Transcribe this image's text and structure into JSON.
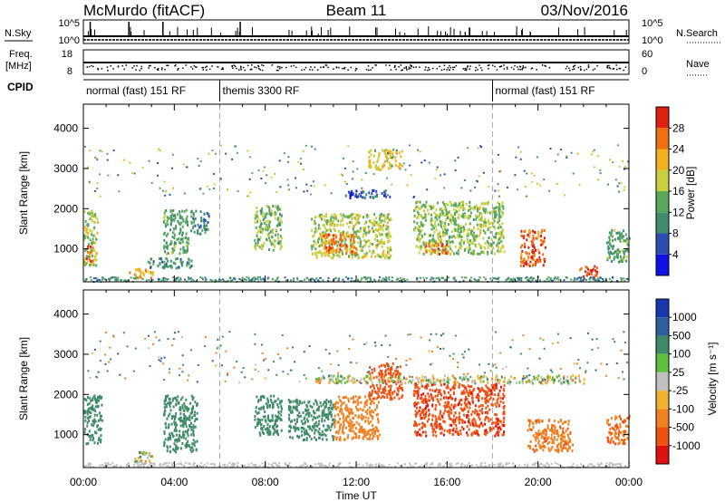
{
  "header": {
    "title_left": "McMurdo (fitACF)",
    "title_center": "Beam 11",
    "title_right": "03/Nov/2016"
  },
  "top_panels": {
    "nsky_label": "N.Sky",
    "nsearch_label": "N.Search",
    "nsky_ticks": [
      "10^5",
      "10^0"
    ],
    "nsearch_ticks": [
      "10^5",
      "10^0"
    ],
    "freq_label_1": "Freq.",
    "freq_label_2": "[MHz]",
    "freq_ticks": [
      "18",
      "8"
    ],
    "nave_label": "Nave",
    "nave_ticks": [
      "60",
      "0"
    ],
    "cpid_label": "CPID",
    "cpid_segments": [
      {
        "label": "normal (fast) 151 RF",
        "start_hour": 0,
        "end_hour": 6
      },
      {
        "label": "themis 3300 RF",
        "start_hour": 6,
        "end_hour": 18
      },
      {
        "label": "normal (fast) 151 RF",
        "start_hour": 18,
        "end_hour": 24
      }
    ]
  },
  "axes": {
    "xlabel": "Time UT",
    "x_tick_labels": [
      "00:00",
      "04:00",
      "08:00",
      "12:00",
      "16:00",
      "20:00",
      "00:00"
    ],
    "ylabel": "Slant Range [km]",
    "y_tick_labels": [
      "1000",
      "2000",
      "3000",
      "4000"
    ]
  },
  "colorbars": {
    "power": {
      "label": "Power [dB]",
      "tick_labels": [
        "4",
        "8",
        "12",
        "16",
        "20",
        "24",
        "28"
      ],
      "colors": [
        "#1010e8",
        "#2a4fb0",
        "#3f8f6f",
        "#5aa85a",
        "#c8d040",
        "#f0b020",
        "#f07010",
        "#e02010"
      ]
    },
    "velocity": {
      "label": "Velocity [m s⁻¹]",
      "tick_labels": [
        "1000",
        "500",
        "100",
        "25",
        "-25",
        "-100",
        "-500",
        "-1000"
      ],
      "colors": [
        "#1838b0",
        "#2f5fa0",
        "#3f8a6a",
        "#5fbf40",
        "#c0c0c0",
        "#f0b030",
        "#f08020",
        "#f05010",
        "#e01010"
      ]
    }
  },
  "chart_data": [
    {
      "type": "heatmap",
      "title": "Power",
      "x_range_hours": [
        0,
        24
      ],
      "y_range_km": [
        180,
        4600
      ],
      "colorbar_range_db": [
        0,
        30
      ],
      "scatter_regions": [
        {
          "t_start": 0.0,
          "t_end": 0.6,
          "r_start": 600,
          "r_end": 2000,
          "value_db": 16
        },
        {
          "t_start": 0.1,
          "t_end": 0.4,
          "r_start": 700,
          "r_end": 1100,
          "value_db": 25
        },
        {
          "t_start": 2.0,
          "t_end": 3.1,
          "r_start": 300,
          "r_end": 550,
          "value_db": 20
        },
        {
          "t_start": 2.8,
          "t_end": 4.8,
          "r_start": 550,
          "r_end": 800,
          "value_db": 10
        },
        {
          "t_start": 3.5,
          "t_end": 4.6,
          "r_start": 900,
          "r_end": 2000,
          "value_db": 12
        },
        {
          "t_start": 4.7,
          "t_end": 5.5,
          "r_start": 1400,
          "r_end": 2000,
          "value_db": 10
        },
        {
          "t_start": 7.5,
          "t_end": 8.7,
          "r_start": 1000,
          "r_end": 2100,
          "value_db": 14
        },
        {
          "t_start": 10.0,
          "t_end": 13.5,
          "r_start": 800,
          "r_end": 1900,
          "value_db": 16
        },
        {
          "t_start": 10.5,
          "t_end": 12.0,
          "r_start": 900,
          "r_end": 1400,
          "value_db": 24
        },
        {
          "t_start": 11.5,
          "t_end": 13.5,
          "r_start": 2300,
          "r_end": 2500,
          "value_db": 6
        },
        {
          "t_start": 12.5,
          "t_end": 14.0,
          "r_start": 3000,
          "r_end": 3500,
          "value_db": 18
        },
        {
          "t_start": 14.5,
          "t_end": 18.5,
          "r_start": 900,
          "r_end": 2200,
          "value_db": 15
        },
        {
          "t_start": 15.0,
          "t_end": 16.0,
          "r_start": 900,
          "r_end": 1200,
          "value_db": 24
        },
        {
          "t_start": 19.2,
          "t_end": 20.3,
          "r_start": 600,
          "r_end": 1500,
          "value_db": 25
        },
        {
          "t_start": 19.7,
          "t_end": 20.0,
          "r_start": 900,
          "r_end": 1100,
          "value_db": 29
        },
        {
          "t_start": 21.8,
          "t_end": 22.6,
          "r_start": 300,
          "r_end": 600,
          "value_db": 28
        },
        {
          "t_start": 23.0,
          "t_end": 24.0,
          "r_start": 700,
          "r_end": 1500,
          "value_db": 12
        }
      ]
    },
    {
      "type": "heatmap",
      "title": "Velocity",
      "x_range_hours": [
        0,
        24
      ],
      "y_range_km": [
        180,
        4600
      ],
      "colorbar_range_ms": [
        -1000,
        1000
      ],
      "scatter_regions": [
        {
          "t_start": 0.0,
          "t_end": 0.8,
          "r_start": 800,
          "r_end": 2000,
          "value_ms": 300
        },
        {
          "t_start": 2.2,
          "t_end": 3.0,
          "r_start": 300,
          "r_end": 600,
          "value_ms": 0
        },
        {
          "t_start": 3.5,
          "t_end": 5.0,
          "r_start": 600,
          "r_end": 2000,
          "value_ms": 300
        },
        {
          "t_start": 7.5,
          "t_end": 8.7,
          "r_start": 1000,
          "r_end": 2000,
          "value_ms": 250
        },
        {
          "t_start": 9.0,
          "t_end": 11.0,
          "r_start": 900,
          "r_end": 1900,
          "value_ms": 300
        },
        {
          "t_start": 11.0,
          "t_end": 13.0,
          "r_start": 900,
          "r_end": 2000,
          "value_ms": -200
        },
        {
          "t_start": 12.5,
          "t_end": 14.0,
          "r_start": 1900,
          "r_end": 2800,
          "value_ms": -500
        },
        {
          "t_start": 14.5,
          "t_end": 18.5,
          "r_start": 1000,
          "r_end": 2300,
          "value_ms": -700
        },
        {
          "t_start": 10.0,
          "t_end": 22.0,
          "r_start": 2300,
          "r_end": 2500,
          "value_ms": 0
        },
        {
          "t_start": 19.5,
          "t_end": 21.5,
          "r_start": 600,
          "r_end": 1400,
          "value_ms": -250
        },
        {
          "t_start": 23.0,
          "t_end": 24.0,
          "r_start": 800,
          "r_end": 1500,
          "value_ms": -300
        }
      ]
    }
  ]
}
